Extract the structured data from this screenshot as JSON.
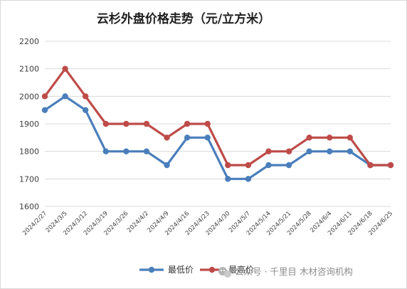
{
  "chart_data": {
    "type": "line",
    "title": "云杉外盘价格走势（元/立方米）",
    "xlabel": "",
    "ylabel": "",
    "x": [
      "2024/2/27",
      "2024/3/5",
      "2024/3/12",
      "2024/3/19",
      "2024/3/26",
      "2024/4/2",
      "2024/4/9",
      "2024/4/16",
      "2024/4/23",
      "2024/4/30",
      "2024/5/7",
      "2024/5/14",
      "2024/5/21",
      "2024/5/28",
      "2024/6/4",
      "2024/6/11",
      "2024/6/18",
      "2024/6/25"
    ],
    "yticks": [
      "1600",
      "1700",
      "1800",
      "1900",
      "2000",
      "2100",
      "2200"
    ],
    "ylim": [
      1600,
      2200
    ],
    "grid": true,
    "legend_position": "bottom",
    "series": [
      {
        "name": "最低价",
        "color": "#4a7ebb",
        "values": [
          1950,
          2000,
          1950,
          1800,
          1800,
          1800,
          1750,
          1850,
          1850,
          1700,
          1700,
          1750,
          1750,
          1800,
          1800,
          1800,
          1750,
          1750
        ]
      },
      {
        "name": "最高价",
        "color": "#be4b48",
        "values": [
          2000,
          2100,
          2000,
          1900,
          1900,
          1900,
          1850,
          1900,
          1900,
          1750,
          1750,
          1800,
          1800,
          1850,
          1850,
          1850,
          1750,
          1750
        ]
      }
    ]
  },
  "watermark": {
    "text": "公众号 · 千里目 木材咨询机构",
    "icon": "wechat-icon"
  },
  "colors": {
    "grid": "#d9d9d9",
    "border": "#d9d9d9"
  }
}
